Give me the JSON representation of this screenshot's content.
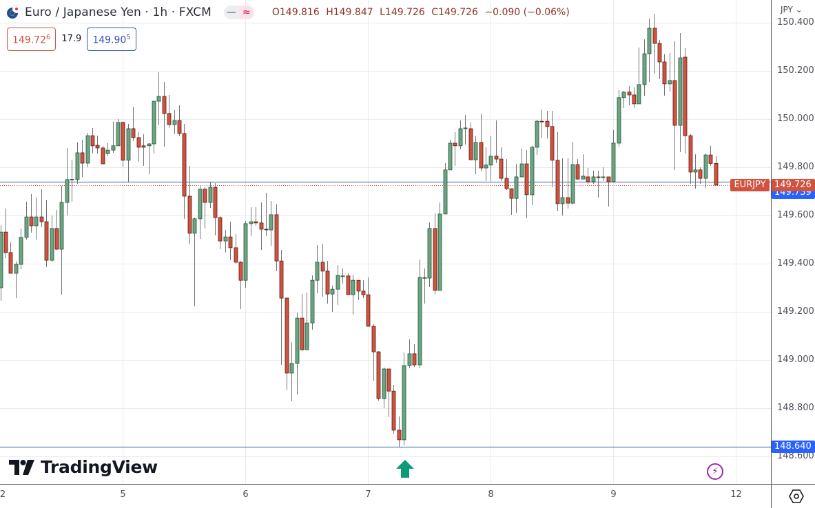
{
  "header": {
    "symbol_title": "Euro / Japanese Yen · 1h · FXCM",
    "mode_icons": [
      "minus-icon",
      "approx-icon"
    ],
    "mode_glyphs": [
      "—",
      "≈"
    ],
    "ohlc": {
      "open": "O149.816",
      "high": "H149.847",
      "low": "L149.726",
      "close": "C149.726",
      "change": "−0.090 (−0.06%)"
    },
    "bid": {
      "main": "149.72",
      "pip": "6"
    },
    "spread": "17.9",
    "ask": {
      "main": "149.90",
      "pip": "5"
    }
  },
  "price_axis": {
    "currency": "JPY",
    "currency_caret": "⌄",
    "ticks": [
      "150.400",
      "150.200",
      "150.000",
      "149.800",
      "149.600",
      "149.400",
      "149.200",
      "149.000",
      "148.800",
      "148.600"
    ],
    "tags": {
      "line_upper": {
        "value": "149.739",
        "color": "#2962ff"
      },
      "last_price": {
        "value": "149.726",
        "symbol": "EURJPY",
        "color": "#d0533f"
      },
      "line_lower": {
        "value": "148.640",
        "color": "#2962ff"
      }
    }
  },
  "time_axis": {
    "labels": [
      {
        "label": "2",
        "index": 0
      },
      {
        "label": "5",
        "index": 24
      },
      {
        "label": "6",
        "index": 48
      },
      {
        "label": "7",
        "index": 72
      },
      {
        "label": "8",
        "index": 96
      },
      {
        "label": "9",
        "index": 120
      },
      {
        "label": "12",
        "index": 144
      }
    ]
  },
  "branding": {
    "logo_text": "TradingView"
  },
  "colors": {
    "up": "#6ba583",
    "up_border": "#225437",
    "down": "#d0533f",
    "down_border": "#5b1a13",
    "wick": "#737375",
    "hline": "#2a5aa0",
    "signal_arrow": "#0e9a7a",
    "bolt": "#9c27b0"
  },
  "chart_data": {
    "type": "candlestick",
    "title": "Euro / Japanese Yen · 1h · FXCM",
    "interval": "1h",
    "ylim": [
      148.486,
      150.494
    ],
    "grid": true,
    "horizontal_lines": [
      149.739,
      148.64
    ],
    "last_price_line": 149.726,
    "signal": {
      "type": "buy-arrow",
      "index": 79
    },
    "ohlc": [
      [
        149.3,
        149.56,
        149.246,
        149.531
      ],
      [
        149.531,
        149.629,
        149.423,
        149.446
      ],
      [
        149.446,
        149.489,
        149.36,
        149.36
      ],
      [
        149.36,
        149.409,
        149.257,
        149.397
      ],
      [
        149.397,
        149.546,
        149.377,
        149.509
      ],
      [
        149.509,
        149.657,
        149.5,
        149.594
      ],
      [
        149.594,
        149.689,
        149.529,
        149.557
      ],
      [
        149.557,
        149.674,
        149.5,
        149.594
      ],
      [
        149.594,
        149.709,
        149.551,
        149.574
      ],
      [
        149.574,
        149.663,
        149.386,
        149.414
      ],
      [
        149.414,
        149.6,
        149.409,
        149.546
      ],
      [
        149.546,
        149.623,
        149.457,
        149.46
      ],
      [
        149.46,
        149.723,
        149.271,
        149.654
      ],
      [
        149.654,
        149.88,
        149.6,
        149.749
      ],
      [
        149.749,
        149.831,
        149.657,
        149.75
      ],
      [
        149.749,
        149.903,
        149.731,
        149.86
      ],
      [
        149.86,
        149.914,
        149.76,
        149.817
      ],
      [
        149.817,
        149.943,
        149.8,
        149.931
      ],
      [
        149.931,
        149.963,
        149.857,
        149.889
      ],
      [
        149.891,
        149.931,
        149.857,
        149.88
      ],
      [
        149.88,
        149.889,
        149.814,
        149.814
      ],
      [
        149.857,
        149.9,
        149.846,
        149.871
      ],
      [
        149.871,
        149.989,
        149.86,
        149.889
      ],
      [
        149.889,
        150.0,
        149.889,
        149.986
      ],
      [
        149.986,
        149.991,
        149.8,
        149.829
      ],
      [
        149.829,
        149.98,
        149.74,
        149.96
      ],
      [
        149.96,
        150.049,
        149.909,
        149.923
      ],
      [
        149.923,
        149.946,
        149.823,
        149.883
      ],
      [
        149.889,
        149.937,
        149.806,
        149.883
      ],
      [
        149.889,
        149.9,
        149.771,
        149.897
      ],
      [
        149.897,
        150.074,
        149.857,
        150.074
      ],
      [
        150.074,
        150.194,
        149.974,
        150.094
      ],
      [
        150.094,
        150.154,
        149.886,
        150.023
      ],
      [
        150.023,
        150.1,
        149.963,
        149.977
      ],
      [
        149.977,
        150.037,
        149.937,
        149.994
      ],
      [
        149.994,
        150.057,
        149.929,
        149.94
      ],
      [
        149.94,
        149.98,
        149.586,
        149.68
      ],
      [
        149.68,
        149.806,
        149.48,
        149.526
      ],
      [
        149.526,
        149.591,
        149.223,
        149.586
      ],
      [
        149.586,
        149.723,
        149.503,
        149.709
      ],
      [
        149.709,
        149.717,
        149.546,
        149.654
      ],
      [
        149.654,
        149.737,
        149.631,
        149.717
      ],
      [
        149.717,
        149.734,
        149.517,
        149.591
      ],
      [
        149.591,
        149.597,
        149.46,
        149.494
      ],
      [
        149.494,
        149.54,
        149.446,
        149.511
      ],
      [
        149.511,
        149.574,
        149.414,
        149.466
      ],
      [
        149.466,
        149.523,
        149.4,
        149.406
      ],
      [
        149.406,
        149.411,
        149.211,
        149.331
      ],
      [
        149.331,
        149.577,
        149.3,
        149.566
      ],
      [
        149.566,
        149.634,
        149.514,
        149.574
      ],
      [
        149.574,
        149.634,
        149.557,
        149.569
      ],
      [
        149.569,
        149.654,
        149.457,
        149.543
      ],
      [
        149.543,
        149.694,
        149.514,
        149.54
      ],
      [
        149.54,
        149.66,
        149.474,
        149.603
      ],
      [
        149.603,
        149.646,
        149.369,
        149.411
      ],
      [
        149.411,
        149.457,
        148.98,
        149.257
      ],
      [
        149.257,
        149.26,
        148.877,
        148.946
      ],
      [
        148.946,
        149.074,
        148.829,
        148.986
      ],
      [
        148.986,
        149.197,
        148.857,
        149.174
      ],
      [
        149.174,
        149.274,
        149.037,
        149.043
      ],
      [
        149.043,
        149.28,
        149.043,
        149.154
      ],
      [
        149.154,
        149.351,
        149.126,
        149.331
      ],
      [
        149.331,
        149.477,
        149.277,
        149.406
      ],
      [
        149.406,
        149.483,
        149.263,
        149.369
      ],
      [
        149.369,
        149.411,
        149.234,
        149.274
      ],
      [
        149.274,
        149.309,
        149.2,
        149.294
      ],
      [
        149.294,
        149.394,
        149.229,
        149.351
      ],
      [
        149.349,
        149.38,
        149.317,
        149.349
      ],
      [
        149.349,
        149.36,
        149.271,
        149.271
      ],
      [
        149.271,
        149.354,
        149.189,
        149.331
      ],
      [
        149.331,
        149.331,
        149.249,
        149.286
      ],
      [
        149.286,
        149.331,
        149.257,
        149.271
      ],
      [
        149.271,
        149.343,
        149.14,
        149.14
      ],
      [
        149.14,
        149.149,
        148.914,
        149.034
      ],
      [
        149.034,
        149.037,
        148.831,
        148.84
      ],
      [
        148.84,
        148.969,
        148.8,
        148.963
      ],
      [
        148.963,
        148.963,
        148.763,
        148.871
      ],
      [
        148.871,
        148.897,
        148.694,
        148.709
      ],
      [
        148.709,
        148.766,
        148.64,
        148.669
      ],
      [
        148.669,
        149.031,
        148.646,
        148.977
      ],
      [
        148.977,
        149.086,
        148.966,
        149.026
      ],
      [
        149.026,
        149.066,
        148.971,
        148.98
      ],
      [
        148.98,
        149.417,
        148.966,
        149.343
      ],
      [
        149.34,
        149.38,
        149.234,
        149.342
      ],
      [
        149.34,
        149.571,
        149.303,
        149.546
      ],
      [
        149.546,
        149.609,
        149.274,
        149.289
      ],
      [
        149.289,
        149.654,
        149.289,
        149.606
      ],
      [
        149.606,
        149.817,
        149.606,
        149.789
      ],
      [
        149.789,
        149.914,
        149.789,
        149.9
      ],
      [
        149.9,
        149.946,
        149.806,
        149.889
      ],
      [
        149.889,
        149.994,
        149.874,
        149.96
      ],
      [
        149.96,
        150.017,
        149.894,
        149.963
      ],
      [
        149.96,
        149.986,
        149.831,
        149.831
      ],
      [
        149.831,
        149.929,
        149.771,
        149.903
      ],
      [
        149.903,
        150.023,
        149.783,
        149.797
      ],
      [
        149.797,
        149.883,
        149.743,
        149.809
      ],
      [
        149.809,
        149.929,
        149.743,
        149.846
      ],
      [
        149.846,
        149.994,
        149.817,
        149.834
      ],
      [
        149.834,
        149.883,
        149.743,
        149.754
      ],
      [
        149.754,
        149.834,
        149.706,
        149.711
      ],
      [
        149.711,
        149.711,
        149.603,
        149.671
      ],
      [
        149.671,
        149.814,
        149.611,
        149.76
      ],
      [
        149.76,
        149.877,
        149.76,
        149.814
      ],
      [
        149.814,
        149.871,
        149.589,
        149.686
      ],
      [
        149.686,
        149.889,
        149.643,
        149.883
      ],
      [
        149.883,
        149.997,
        149.851,
        149.991
      ],
      [
        149.991,
        150.04,
        149.923,
        149.99
      ],
      [
        149.991,
        150.034,
        149.92,
        149.969
      ],
      [
        149.969,
        150.034,
        149.717,
        149.829
      ],
      [
        149.829,
        149.946,
        149.617,
        149.649
      ],
      [
        149.649,
        149.837,
        149.6,
        149.674
      ],
      [
        149.674,
        149.837,
        149.629,
        149.651
      ],
      [
        149.651,
        149.903,
        149.646,
        149.811
      ],
      [
        149.811,
        149.834,
        149.749,
        149.751
      ],
      [
        149.751,
        149.854,
        149.751,
        149.763
      ],
      [
        149.76,
        149.797,
        149.729,
        149.74
      ],
      [
        149.74,
        149.786,
        149.731,
        149.76
      ],
      [
        149.76,
        149.786,
        149.674,
        149.759
      ],
      [
        149.76,
        149.8,
        149.743,
        149.76
      ],
      [
        149.76,
        149.76,
        149.637,
        149.74
      ],
      [
        149.74,
        149.954,
        149.74,
        149.9
      ],
      [
        149.9,
        150.12,
        149.886,
        150.089
      ],
      [
        150.089,
        150.117,
        150.046,
        150.112
      ],
      [
        150.112,
        150.137,
        150.057,
        150.1
      ],
      [
        150.1,
        150.131,
        150.046,
        150.063
      ],
      [
        150.063,
        150.297,
        150.063,
        150.143
      ],
      [
        150.143,
        150.331,
        150.097,
        150.271
      ],
      [
        150.271,
        150.417,
        150.154,
        150.377
      ],
      [
        150.377,
        150.437,
        150.189,
        150.314
      ],
      [
        150.314,
        150.329,
        150.166,
        150.237
      ],
      [
        150.237,
        150.269,
        150.097,
        150.146
      ],
      [
        150.146,
        150.274,
        150.114,
        150.16
      ],
      [
        150.16,
        150.323,
        149.789,
        149.974
      ],
      [
        149.974,
        150.357,
        149.863,
        150.254
      ],
      [
        150.257,
        150.294,
        149.857,
        149.931
      ],
      [
        149.931,
        149.937,
        149.731,
        149.78
      ],
      [
        149.78,
        149.854,
        149.711,
        149.789
      ],
      [
        149.789,
        149.8,
        149.731,
        149.754
      ],
      [
        149.754,
        149.857,
        149.714,
        149.851
      ],
      [
        149.851,
        149.889,
        149.806,
        149.816
      ],
      [
        149.816,
        149.847,
        149.726,
        149.726
      ]
    ]
  }
}
